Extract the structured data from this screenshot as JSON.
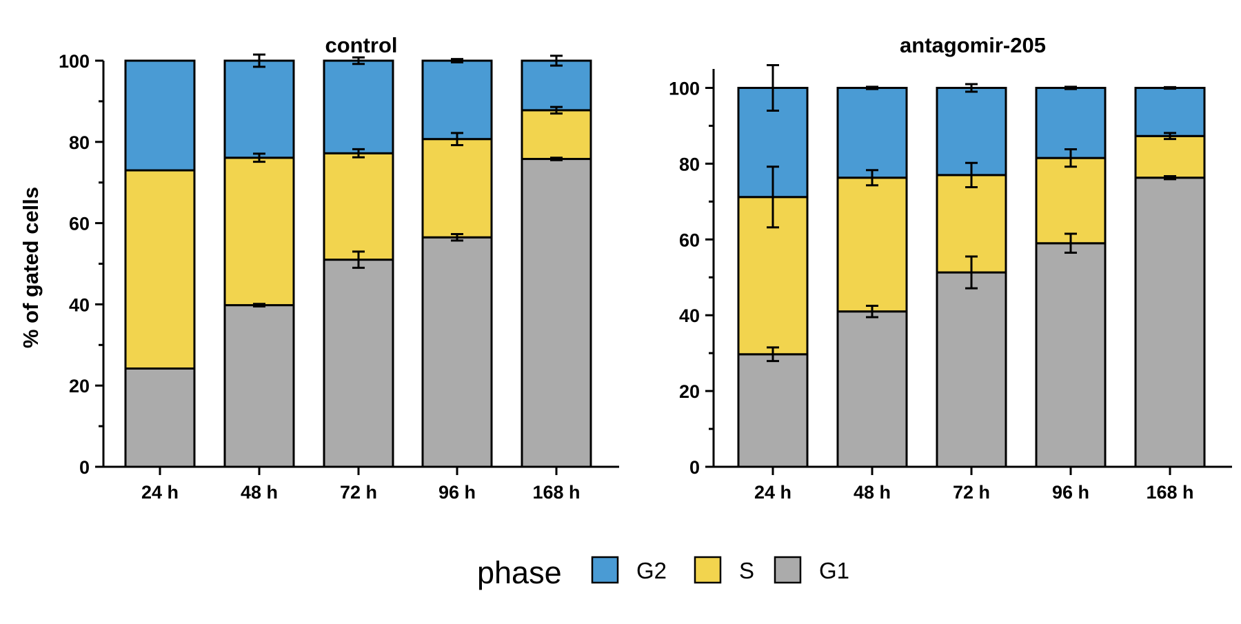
{
  "chart_data": {
    "type": "bar",
    "stacked": true,
    "ylabel": "% of gated cells",
    "ylim": [
      0,
      100
    ],
    "legend": {
      "title": "phase",
      "position": "bottom",
      "entries": [
        {
          "name": "G2",
          "color": "#4A9BD4"
        },
        {
          "name": "S",
          "color": "#F2D44E"
        },
        {
          "name": "G1",
          "color": "#ABABAB"
        }
      ]
    },
    "panels": [
      {
        "title": "control",
        "categories": [
          "24 h",
          "48 h",
          "72 h",
          "96 h",
          "168 h"
        ],
        "y_ticks": [
          0,
          20,
          40,
          60,
          80,
          100
        ],
        "y_max": 100,
        "series": [
          {
            "name": "G1",
            "values": [
              24.2,
              39.8,
              51.0,
              56.5,
              75.8
            ],
            "error": [
              0,
              0.3,
              2.0,
              0.8,
              0.3
            ]
          },
          {
            "name": "S",
            "values": [
              48.8,
              36.3,
              26.2,
              24.2,
              12.0
            ],
            "error": [
              0,
              1.0,
              1.0,
              1.5,
              0.8
            ]
          },
          {
            "name": "G2",
            "values": [
              27.0,
              23.9,
              22.8,
              19.3,
              12.2
            ],
            "error": [
              0,
              1.5,
              0.8,
              0.4,
              1.2
            ]
          }
        ]
      },
      {
        "title": "antagomir-205",
        "categories": [
          "24 h",
          "48 h",
          "72 h",
          "96 h",
          "168 h"
        ],
        "y_ticks": [
          0,
          20,
          40,
          60,
          80,
          100
        ],
        "y_max": 105,
        "series": [
          {
            "name": "G1",
            "values": [
              29.7,
              41.0,
              51.3,
              59.0,
              76.3
            ],
            "error": [
              1.8,
              1.5,
              4.2,
              2.5,
              0.4
            ]
          },
          {
            "name": "S",
            "values": [
              41.5,
              35.3,
              25.7,
              22.5,
              11.0
            ],
            "error": [
              8.0,
              2.0,
              3.2,
              2.3,
              0.8
            ]
          },
          {
            "name": "G2",
            "values": [
              28.8,
              23.7,
              23.0,
              18.5,
              12.7
            ],
            "error": [
              6.0,
              0.3,
              1.0,
              0.3,
              0.2
            ]
          }
        ]
      }
    ]
  }
}
